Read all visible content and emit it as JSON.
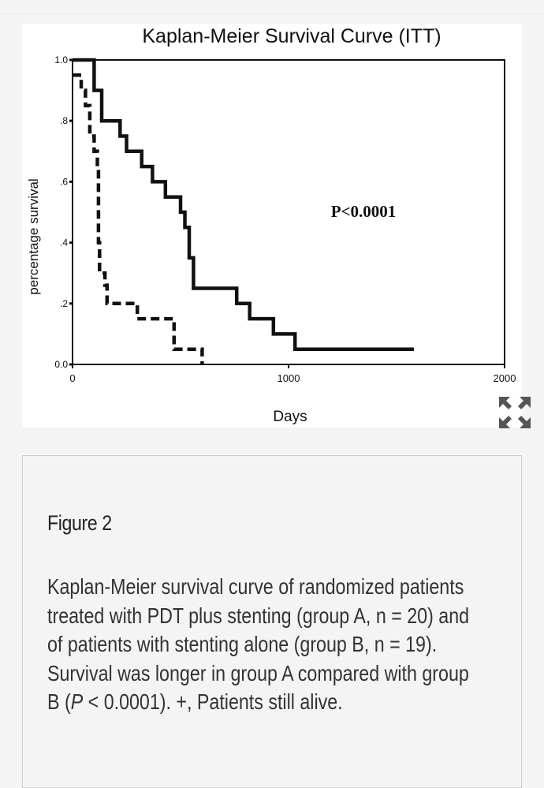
{
  "chart_data": {
    "type": "line",
    "step": true,
    "title": "Kaplan-Meier Survival Curve (ITT)",
    "xlabel": "Days",
    "ylabel": "percentage survival",
    "xlim": [
      0,
      2000
    ],
    "ylim": [
      0,
      1
    ],
    "xticks": [
      "0",
      "1000",
      "2000"
    ],
    "yticks": [
      "0.0",
      ".2",
      ".4",
      ".6",
      ".8",
      "1.0"
    ],
    "annotation": "P<0.0001",
    "grid": false,
    "legend": "none",
    "series": [
      {
        "style": "solid",
        "points": [
          [
            0,
            1.0
          ],
          [
            100,
            1.0
          ],
          [
            100,
            0.95
          ],
          [
            100,
            0.95
          ],
          [
            100,
            0.9
          ],
          [
            135,
            0.9
          ],
          [
            135,
            0.8
          ],
          [
            220,
            0.8
          ],
          [
            220,
            0.75
          ],
          [
            250,
            0.75
          ],
          [
            250,
            0.7
          ],
          [
            320,
            0.7
          ],
          [
            320,
            0.65
          ],
          [
            370,
            0.65
          ],
          [
            370,
            0.6
          ],
          [
            430,
            0.6
          ],
          [
            430,
            0.55
          ],
          [
            500,
            0.55
          ],
          [
            500,
            0.5
          ],
          [
            520,
            0.5
          ],
          [
            520,
            0.45
          ],
          [
            540,
            0.45
          ],
          [
            540,
            0.4
          ],
          [
            540,
            0.35
          ],
          [
            560,
            0.35
          ],
          [
            560,
            0.3
          ],
          [
            560,
            0.25
          ],
          [
            760,
            0.25
          ],
          [
            760,
            0.2
          ],
          [
            820,
            0.2
          ],
          [
            820,
            0.15
          ],
          [
            930,
            0.15
          ],
          [
            930,
            0.1
          ],
          [
            1030,
            0.1
          ],
          [
            1030,
            0.05
          ],
          [
            1580,
            0.05
          ]
        ]
      },
      {
        "style": "dashed",
        "points": [
          [
            0,
            0.95
          ],
          [
            40,
            0.95
          ],
          [
            40,
            0.9
          ],
          [
            60,
            0.9
          ],
          [
            60,
            0.85
          ],
          [
            80,
            0.85
          ],
          [
            80,
            0.75
          ],
          [
            100,
            0.75
          ],
          [
            100,
            0.7
          ],
          [
            115,
            0.7
          ],
          [
            115,
            0.65
          ],
          [
            120,
            0.65
          ],
          [
            120,
            0.55
          ],
          [
            120,
            0.5
          ],
          [
            120,
            0.4
          ],
          [
            125,
            0.4
          ],
          [
            125,
            0.3
          ],
          [
            150,
            0.3
          ],
          [
            150,
            0.26
          ],
          [
            160,
            0.26
          ],
          [
            160,
            0.2
          ],
          [
            300,
            0.2
          ],
          [
            300,
            0.15
          ],
          [
            470,
            0.15
          ],
          [
            470,
            0.1
          ],
          [
            470,
            0.05
          ],
          [
            600,
            0.05
          ],
          [
            600,
            0.0
          ]
        ]
      }
    ]
  },
  "icons": {
    "expand": "expand-arrows-icon"
  },
  "caption": {
    "title": "Figure 2",
    "text_part1": "Kaplan-Meier survival curve of randomized patients treated with PDT plus stenting (group A, n = 20) and of patients with stenting alone (group B, n = 19). Survival was longer in group A compared with group B (",
    "text_italic": "P",
    "text_part2": " < 0.0001). +, Patients still alive."
  },
  "colors": {
    "line": "#111111",
    "background": "#f4f4f4",
    "frame": "#ffffff"
  }
}
